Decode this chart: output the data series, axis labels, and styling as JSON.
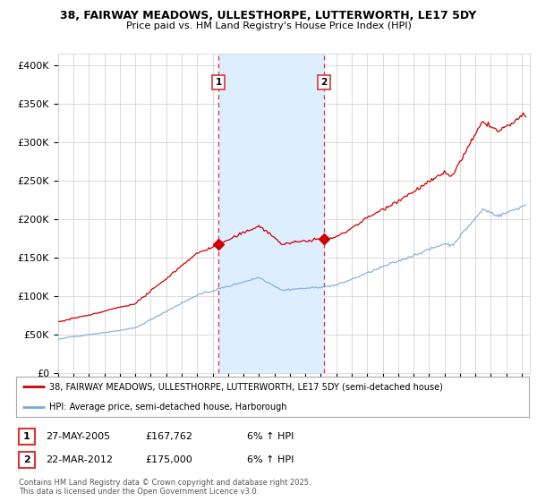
{
  "title1": "38, FAIRWAY MEADOWS, ULLESTHORPE, LUTTERWORTH, LE17 5DY",
  "title2": "Price paid vs. HM Land Registry's House Price Index (HPI)",
  "ylabel_ticks": [
    "£0",
    "£50K",
    "£100K",
    "£150K",
    "£200K",
    "£250K",
    "£300K",
    "£350K",
    "£400K"
  ],
  "ytick_vals": [
    0,
    50000,
    100000,
    150000,
    200000,
    250000,
    300000,
    350000,
    400000
  ],
  "ylim": [
    0,
    415000
  ],
  "xlim_start": 1995.0,
  "xlim_end": 2025.5,
  "sale1_year": 2005.38,
  "sale1_price": 167762,
  "sale1_label": "1",
  "sale2_year": 2012.22,
  "sale2_price": 175000,
  "sale2_label": "2",
  "property_line_color": "#cc0000",
  "hpi_line_color": "#7aaadd",
  "shaded_region_color": "#ddeeff",
  "vline_color": "#dd3333",
  "grid_color": "#cccccc",
  "background_color": "#ffffff",
  "legend_label_property": "38, FAIRWAY MEADOWS, ULLESTHORPE, LUTTERWORTH, LE17 5DY (semi-detached house)",
  "legend_label_hpi": "HPI: Average price, semi-detached house, Harborough",
  "table_row1": [
    "1",
    "27-MAY-2005",
    "£167,762",
    "6% ↑ HPI"
  ],
  "table_row2": [
    "2",
    "22-MAR-2012",
    "£175,000",
    "6% ↑ HPI"
  ],
  "footer": "Contains HM Land Registry data © Crown copyright and database right 2025.\nThis data is licensed under the Open Government Licence v3.0."
}
